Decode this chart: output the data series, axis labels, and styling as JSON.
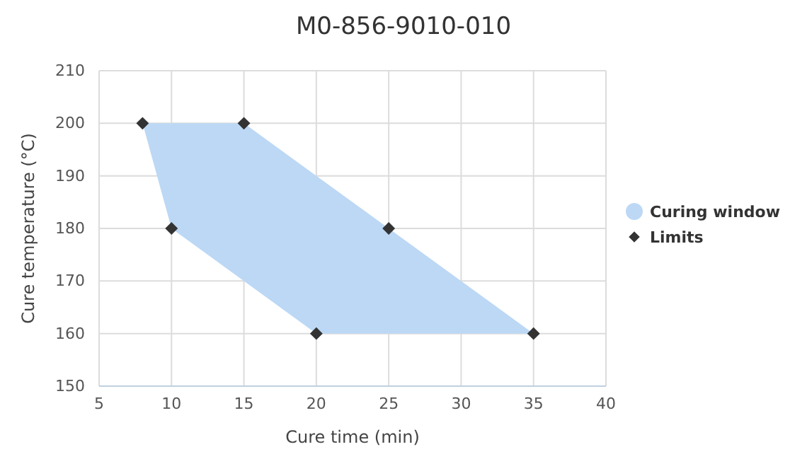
{
  "chart_data": {
    "type": "scatter",
    "title": "M0-856-9010-010",
    "xlabel": "Cure time (min)",
    "ylabel": "Cure temperature (°C)",
    "xlim": [
      5,
      40
    ],
    "xticks": [
      5,
      10,
      15,
      20,
      25,
      30,
      35,
      40
    ],
    "ylim": [
      150,
      210
    ],
    "yticks": [
      150,
      160,
      170,
      180,
      190,
      200,
      210
    ],
    "grid": true,
    "legend": "right",
    "series": [
      {
        "type": "area",
        "name": "Curing window",
        "color": "#bcd8f5",
        "x": [
          8,
          15,
          25,
          35,
          20,
          10
        ],
        "values": [
          200,
          200,
          180,
          160,
          160,
          180
        ]
      },
      {
        "name": "Limits",
        "color": "#333333",
        "marker": "diamond",
        "x": [
          8,
          15,
          25,
          35,
          20,
          10
        ],
        "values": [
          200,
          200,
          180,
          160,
          160,
          180
        ]
      }
    ]
  }
}
